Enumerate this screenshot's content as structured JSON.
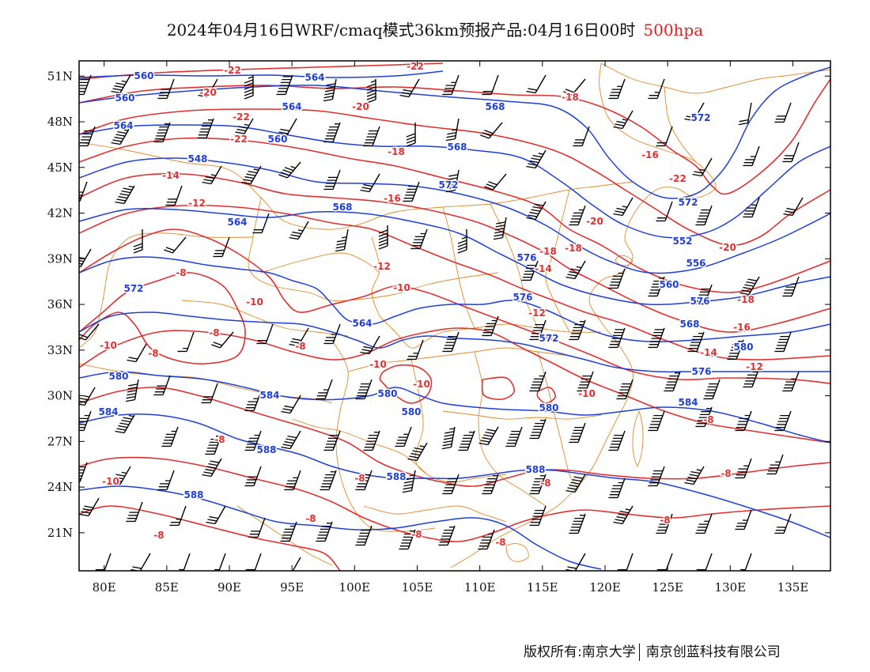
{
  "header": {
    "title": "2024年04月16日WRF/cmaq模式36km预报产品:04月16日00时",
    "level": "500hpa"
  },
  "footer": {
    "copyright_left": "版权所有:南京大学",
    "copyright_right": "南京创蓝科技有限公司"
  },
  "map": {
    "lon_range": [
      78,
      138
    ],
    "lat_range": [
      18.5,
      52
    ],
    "lat_ticks": [
      "51N",
      "48N",
      "45N",
      "42N",
      "39N",
      "36N",
      "33N",
      "30N",
      "27N",
      "24N",
      "21N"
    ],
    "lon_ticks": [
      "80E",
      "85E",
      "90E",
      "95E",
      "100E",
      "105E",
      "110E",
      "115E",
      "120E",
      "125E",
      "130E",
      "135E"
    ],
    "colors": {
      "height": "#1f3fd6",
      "temperature": "#e03030",
      "boundary": "#e08a2a",
      "wind": "#000000"
    },
    "height_labels": [
      "560",
      "564",
      "560",
      "564",
      "568",
      "572",
      "564",
      "560",
      "568",
      "548",
      "572",
      "568",
      "564",
      "572",
      "576",
      "552",
      "556",
      "572",
      "560",
      "564",
      "576",
      "576",
      "568",
      "580",
      "572",
      "576",
      "580",
      "584",
      "580",
      "580",
      "580",
      "584",
      "584",
      "588",
      "588",
      "588",
      "588"
    ],
    "temp_labels": [
      "-22",
      "-22",
      "-20",
      "-20",
      "-18",
      "-22",
      "-16",
      "-18",
      "-22",
      "-22",
      "-14",
      "-16",
      "-12",
      "-20",
      "-18",
      "-20",
      "-12",
      "-14",
      "-18",
      "-10",
      "-10",
      "-12",
      "-18",
      "-8",
      "-16",
      "-10",
      "-8",
      "-8",
      "-14",
      "-8",
      "-12",
      "-10",
      "-10",
      "-10",
      "-8",
      "-10",
      "-8",
      "-8",
      "-8",
      "-8",
      "-8",
      "-8",
      "-8",
      "-8",
      "-8"
    ]
  }
}
